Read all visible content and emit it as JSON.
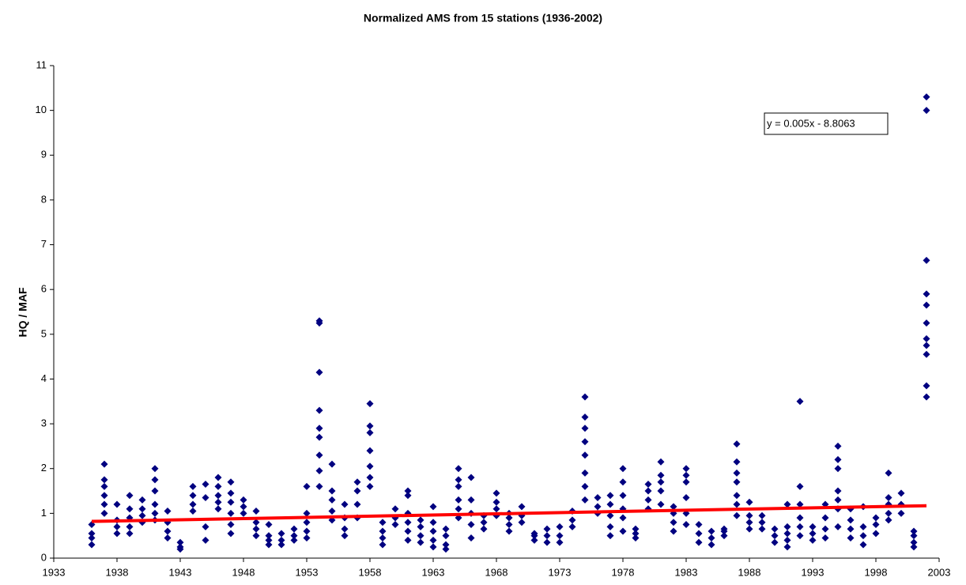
{
  "chart_data": {
    "type": "scatter",
    "title": "Normalized AMS from 15 stations (1936-2002)",
    "y_label": "HQ / MAF",
    "x": [
      1936,
      1936,
      1936,
      1936,
      1937,
      1937,
      1937,
      1937,
      1937,
      1937,
      1938,
      1938,
      1938,
      1938,
      1939,
      1939,
      1939,
      1939,
      1939,
      1940,
      1940,
      1940,
      1940,
      1941,
      1941,
      1941,
      1941,
      1941,
      1941,
      1942,
      1942,
      1942,
      1942,
      1943,
      1943,
      1943,
      1944,
      1944,
      1944,
      1944,
      1945,
      1945,
      1945,
      1945,
      1946,
      1946,
      1946,
      1946,
      1946,
      1947,
      1947,
      1947,
      1947,
      1947,
      1947,
      1948,
      1948,
      1948,
      1949,
      1949,
      1949,
      1949,
      1950,
      1950,
      1950,
      1950,
      1951,
      1951,
      1951,
      1952,
      1952,
      1952,
      1953,
      1953,
      1953,
      1953,
      1953,
      1954,
      1954,
      1954,
      1954,
      1954,
      1954,
      1954,
      1954,
      1954,
      1955,
      1955,
      1955,
      1955,
      1955,
      1956,
      1956,
      1956,
      1956,
      1957,
      1957,
      1957,
      1957,
      1958,
      1958,
      1958,
      1958,
      1958,
      1958,
      1958,
      1959,
      1959,
      1959,
      1959,
      1960,
      1960,
      1960,
      1961,
      1961,
      1961,
      1961,
      1961,
      1961,
      1962,
      1962,
      1962,
      1962,
      1963,
      1963,
      1963,
      1963,
      1963,
      1964,
      1964,
      1964,
      1964,
      1965,
      1965,
      1965,
      1965,
      1965,
      1965,
      1966,
      1966,
      1966,
      1966,
      1966,
      1967,
      1967,
      1967,
      1968,
      1968,
      1968,
      1968,
      1969,
      1969,
      1969,
      1969,
      1970,
      1970,
      1970,
      1971,
      1971,
      1971,
      1972,
      1972,
      1972,
      1973,
      1973,
      1973,
      1974,
      1974,
      1974,
      1975,
      1975,
      1975,
      1975,
      1975,
      1975,
      1975,
      1975,
      1976,
      1976,
      1976,
      1977,
      1977,
      1977,
      1977,
      1977,
      1978,
      1978,
      1978,
      1978,
      1978,
      1978,
      1979,
      1979,
      1979,
      1980,
      1980,
      1980,
      1980,
      1981,
      1981,
      1981,
      1981,
      1981,
      1982,
      1982,
      1982,
      1982,
      1983,
      1983,
      1983,
      1983,
      1983,
      1983,
      1984,
      1984,
      1984,
      1985,
      1985,
      1985,
      1986,
      1986,
      1986,
      1987,
      1987,
      1987,
      1987,
      1987,
      1987,
      1987,
      1988,
      1988,
      1988,
      1988,
      1989,
      1989,
      1989,
      1990,
      1990,
      1990,
      1991,
      1991,
      1991,
      1991,
      1991,
      1992,
      1992,
      1992,
      1992,
      1992,
      1992,
      1993,
      1993,
      1993,
      1994,
      1994,
      1994,
      1994,
      1995,
      1995,
      1995,
      1995,
      1995,
      1995,
      1995,
      1996,
      1996,
      1996,
      1996,
      1997,
      1997,
      1997,
      1997,
      1998,
      1998,
      1998,
      1999,
      1999,
      1999,
      1999,
      1999,
      2000,
      2000,
      2000,
      2001,
      2001,
      2001,
      2001,
      2002,
      2002,
      2002,
      2002,
      2002,
      2002,
      2002,
      2002,
      2002,
      2002,
      2002
    ],
    "values": [
      0.3,
      0.45,
      0.55,
      0.75,
      1.0,
      1.2,
      1.4,
      1.6,
      1.75,
      2.1,
      0.55,
      0.7,
      0.85,
      1.2,
      0.55,
      0.7,
      0.9,
      1.1,
      1.4,
      0.8,
      0.95,
      1.1,
      1.3,
      0.85,
      1.0,
      1.2,
      1.5,
      1.75,
      2.0,
      0.45,
      0.6,
      0.8,
      1.05,
      0.2,
      0.25,
      0.35,
      1.05,
      1.2,
      1.4,
      1.6,
      0.4,
      0.7,
      1.35,
      1.65,
      1.1,
      1.25,
      1.4,
      1.6,
      1.8,
      0.55,
      0.75,
      1.0,
      1.25,
      1.45,
      1.7,
      1.0,
      1.15,
      1.3,
      0.5,
      0.65,
      0.8,
      1.05,
      0.3,
      0.4,
      0.5,
      0.75,
      0.3,
      0.4,
      0.55,
      0.4,
      0.5,
      0.65,
      0.45,
      0.6,
      0.8,
      1.0,
      1.6,
      1.6,
      1.95,
      2.3,
      2.7,
      2.9,
      3.3,
      4.15,
      5.25,
      5.3,
      0.85,
      1.05,
      1.3,
      1.5,
      2.1,
      0.5,
      0.65,
      0.9,
      1.2,
      0.9,
      1.2,
      1.5,
      1.7,
      1.6,
      1.8,
      2.05,
      2.4,
      2.8,
      2.95,
      3.45,
      0.3,
      0.45,
      0.6,
      0.8,
      0.75,
      0.9,
      1.1,
      0.4,
      0.6,
      0.8,
      1.0,
      1.4,
      1.5,
      0.35,
      0.5,
      0.7,
      0.85,
      0.25,
      0.4,
      0.6,
      0.8,
      1.15,
      0.2,
      0.3,
      0.5,
      0.65,
      0.9,
      1.1,
      1.3,
      1.6,
      1.75,
      2.0,
      0.45,
      0.75,
      1.0,
      1.3,
      1.8,
      0.65,
      0.8,
      0.95,
      0.95,
      1.1,
      1.25,
      1.45,
      0.6,
      0.75,
      0.9,
      1.0,
      0.8,
      0.95,
      1.15,
      0.4,
      0.5,
      0.55,
      0.35,
      0.5,
      0.65,
      0.35,
      0.5,
      0.7,
      0.7,
      0.85,
      1.05,
      1.3,
      1.6,
      1.9,
      2.3,
      2.6,
      2.9,
      3.15,
      3.6,
      1.0,
      1.15,
      1.35,
      0.5,
      0.7,
      0.95,
      1.2,
      1.4,
      0.6,
      0.9,
      1.1,
      1.4,
      1.7,
      2.0,
      0.45,
      0.55,
      0.65,
      1.1,
      1.3,
      1.5,
      1.65,
      1.2,
      1.5,
      1.7,
      1.85,
      2.15,
      0.6,
      0.8,
      1.0,
      1.15,
      0.75,
      1.0,
      1.35,
      1.7,
      1.85,
      2.0,
      0.35,
      0.55,
      0.75,
      0.3,
      0.45,
      0.6,
      0.5,
      0.6,
      0.65,
      0.95,
      1.2,
      1.4,
      1.7,
      1.9,
      2.15,
      2.55,
      0.65,
      0.8,
      0.95,
      1.25,
      0.65,
      0.8,
      0.95,
      0.35,
      0.5,
      0.65,
      0.25,
      0.4,
      0.55,
      0.7,
      1.2,
      0.5,
      0.7,
      0.9,
      1.2,
      1.6,
      3.5,
      0.4,
      0.55,
      0.7,
      0.45,
      0.65,
      0.9,
      1.2,
      0.7,
      1.1,
      1.3,
      1.5,
      2.0,
      2.2,
      2.5,
      0.45,
      0.65,
      0.85,
      1.1,
      0.3,
      0.5,
      0.7,
      1.15,
      0.55,
      0.75,
      0.9,
      0.85,
      1.0,
      1.2,
      1.35,
      1.9,
      1.0,
      1.2,
      1.45,
      0.25,
      0.35,
      0.5,
      0.6,
      3.6,
      3.85,
      4.55,
      4.75,
      4.9,
      5.25,
      5.65,
      5.9,
      6.65,
      10.0,
      10.3
    ],
    "color": "#000080",
    "trendline": {
      "x": [
        1936,
        2002
      ],
      "values": [
        0.82,
        1.17
      ],
      "color": "#ff0000",
      "label": "y = 0.005x - 8.8063"
    },
    "xlim": [
      1933,
      2003
    ],
    "xticks": [
      1933,
      1938,
      1943,
      1948,
      1953,
      1958,
      1963,
      1968,
      1973,
      1978,
      1983,
      1988,
      1993,
      1998,
      2003
    ],
    "ylim": [
      0,
      11
    ],
    "yticks": [
      0,
      1,
      2,
      3,
      4,
      5,
      6,
      7,
      8,
      9,
      10,
      11
    ],
    "grid": false
  }
}
